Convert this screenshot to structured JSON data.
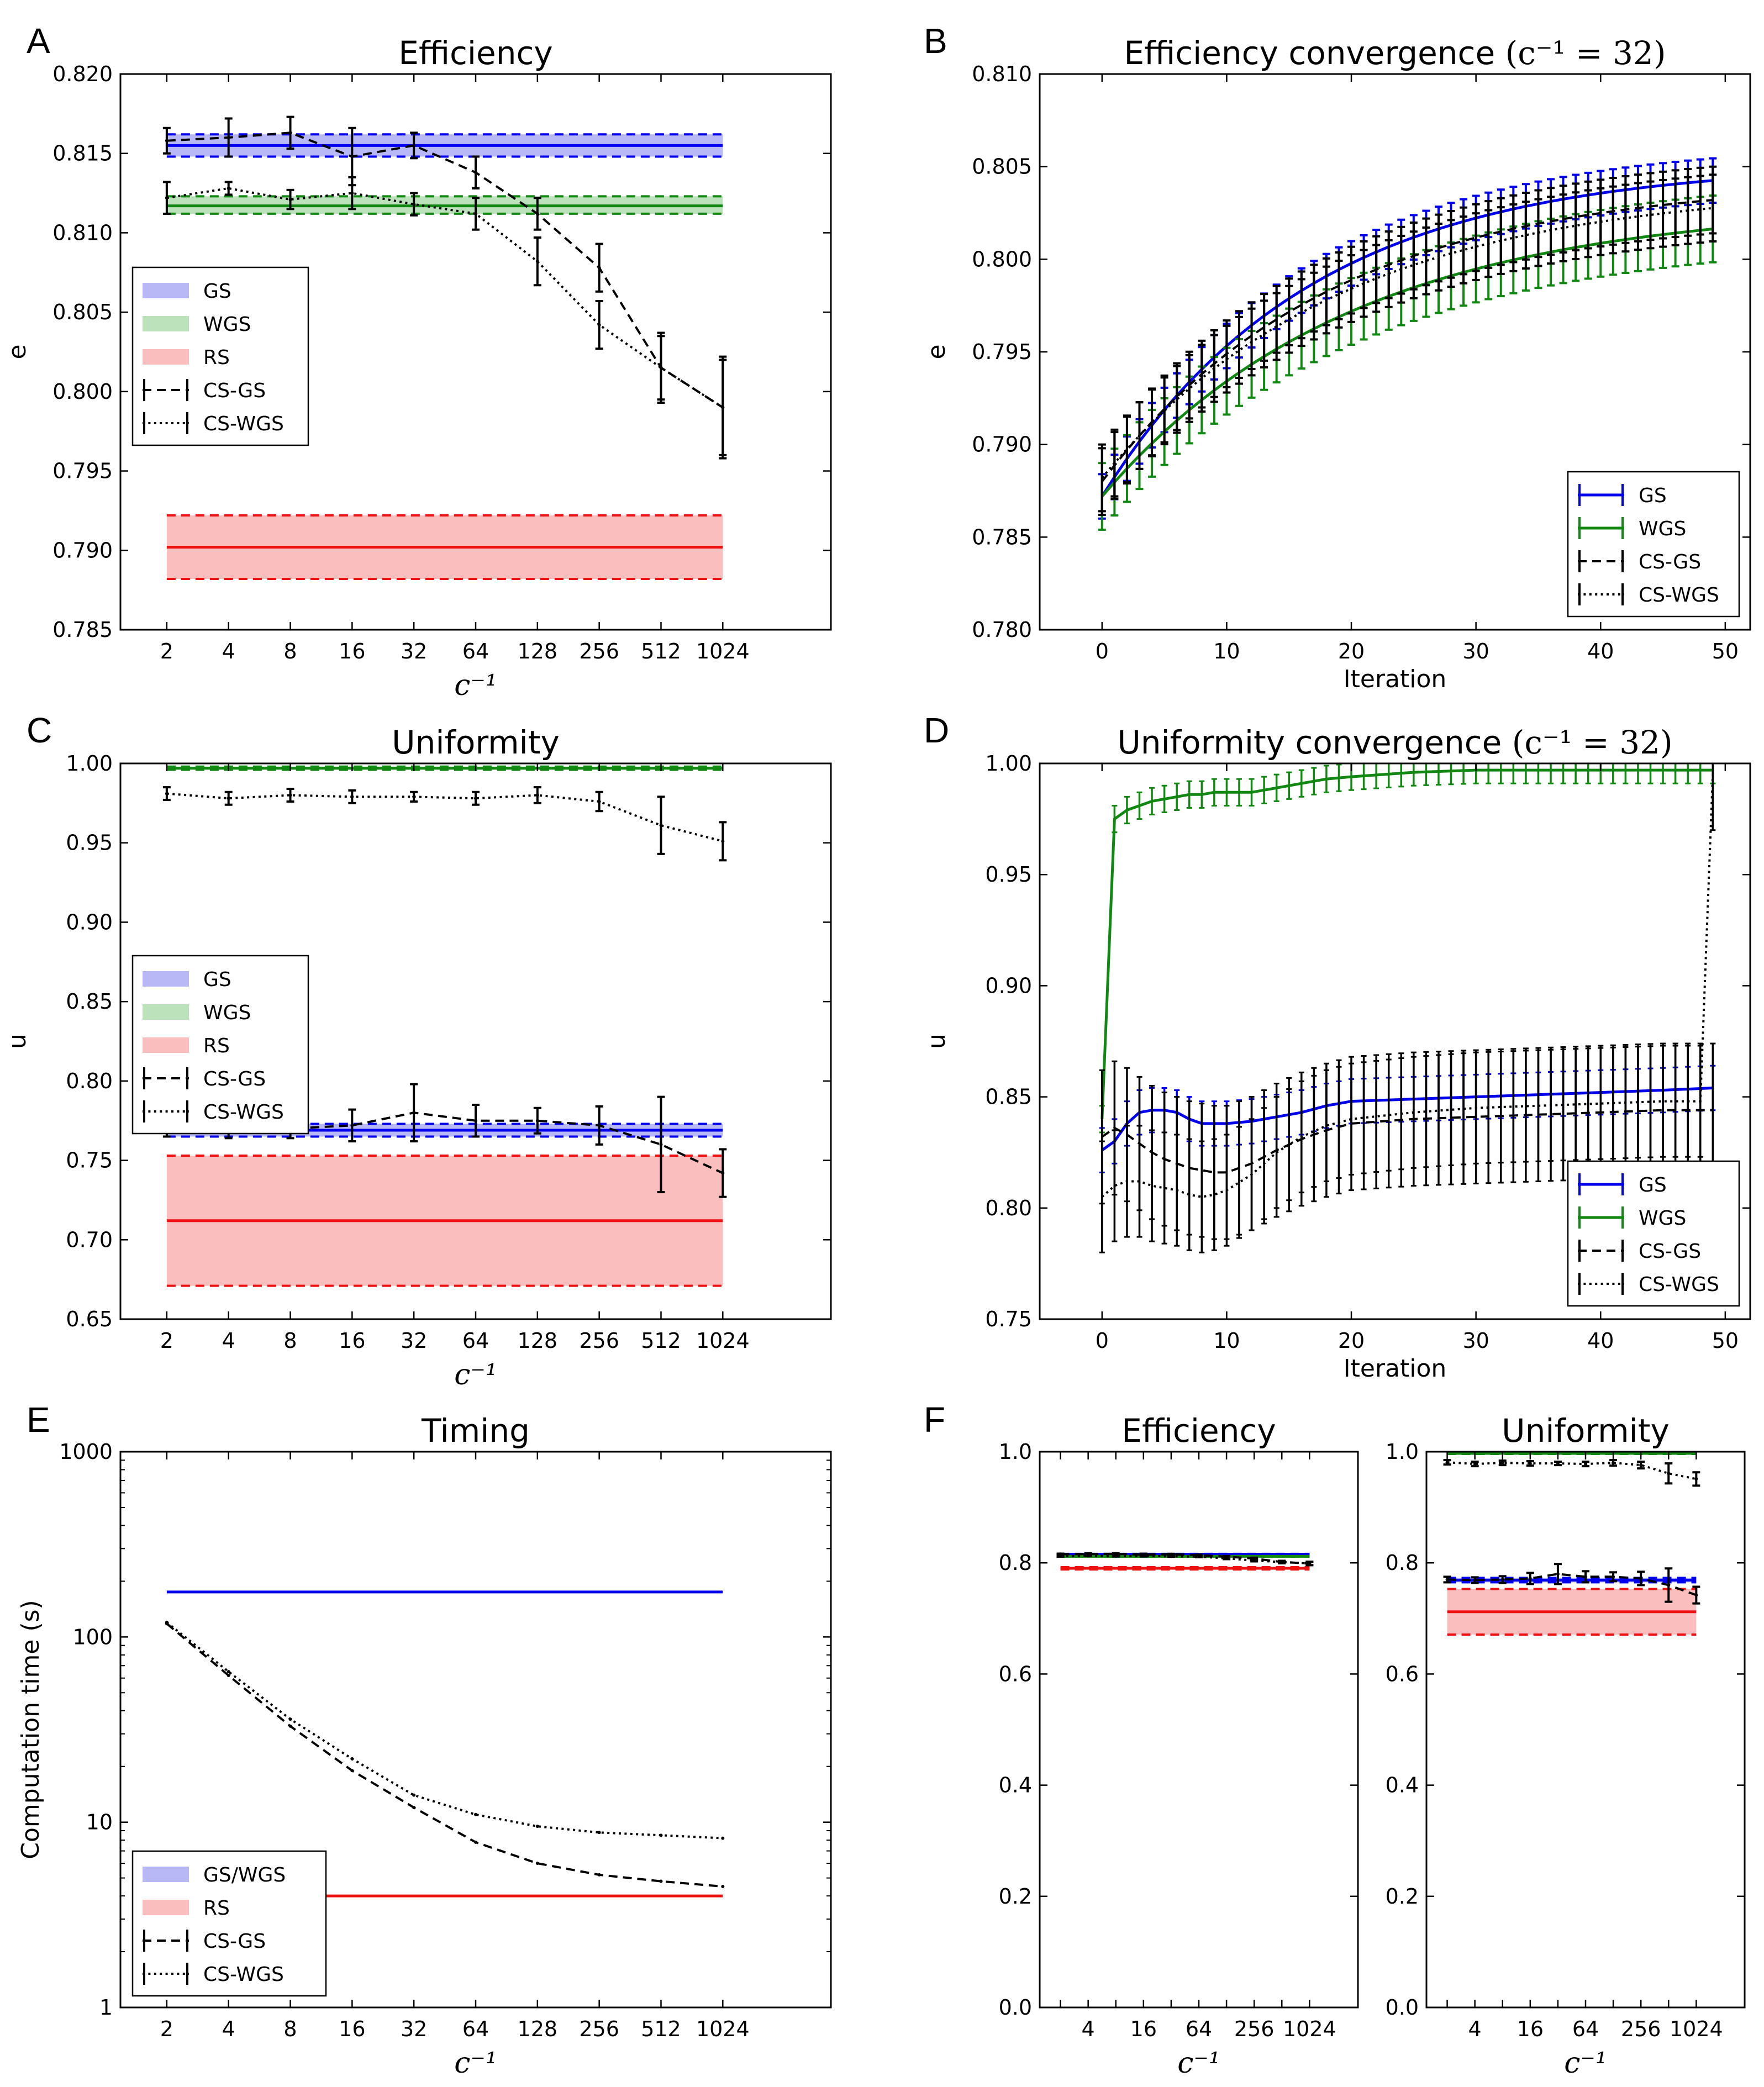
{
  "colors": {
    "GS": "#0000ee",
    "WGS": "#118811",
    "RS": "#ee1111",
    "CS": "#000000",
    "GS_fill": "#a0a0f4",
    "WGS_fill": "#a6d8a6",
    "RS_fill": "#f8a8a8"
  },
  "chart_data": [
    {
      "id": "A",
      "panel_label": "A",
      "type": "line",
      "title": "Efficiency",
      "xlabel": "c⁻¹",
      "ylabel": "e",
      "categories": [
        "2",
        "4",
        "8",
        "16",
        "32",
        "64",
        "128",
        "256",
        "512",
        "1024"
      ],
      "ylim": [
        0.785,
        0.82
      ],
      "yticks": [
        "0.785",
        "0.790",
        "0.795",
        "0.800",
        "0.805",
        "0.810",
        "0.815",
        "0.820"
      ],
      "bands": [
        {
          "name": "GS",
          "mean": 0.8155,
          "lo": 0.8148,
          "hi": 0.8162
        },
        {
          "name": "WGS",
          "mean": 0.8117,
          "lo": 0.8112,
          "hi": 0.8123
        },
        {
          "name": "RS",
          "mean": 0.7902,
          "lo": 0.7882,
          "hi": 0.7922
        }
      ],
      "series": [
        {
          "name": "CS-GS",
          "style": "dashed",
          "values": [
            0.8158,
            0.816,
            0.8163,
            0.8148,
            0.8155,
            0.8138,
            0.8112,
            0.8078,
            0.8015,
            0.799
          ],
          "err": [
            0.0008,
            0.0012,
            0.001,
            0.0018,
            0.0008,
            0.001,
            0.001,
            0.0015,
            0.0022,
            0.0032
          ]
        },
        {
          "name": "CS-WGS",
          "style": "dotted",
          "values": [
            0.8122,
            0.8128,
            0.8121,
            0.8125,
            0.8118,
            0.8112,
            0.8082,
            0.8042,
            0.8015,
            0.799
          ],
          "err": [
            0.001,
            0.0004,
            0.0006,
            0.001,
            0.0007,
            0.001,
            0.0015,
            0.0015,
            0.002,
            0.003
          ]
        }
      ],
      "legend": [
        "GS",
        "WGS",
        "RS",
        "CS-GS",
        "CS-WGS"
      ]
    },
    {
      "id": "B",
      "panel_label": "B",
      "type": "line",
      "title": "Efficiency convergence",
      "title_math": "(c⁻¹ = 32)",
      "xlabel": "Iteration",
      "ylabel": "e",
      "xlim": [
        -5,
        52
      ],
      "xticks": [
        0,
        10,
        20,
        30,
        40,
        50
      ],
      "ylim": [
        0.78,
        0.81
      ],
      "yticks": [
        "0.780",
        "0.785",
        "0.790",
        "0.795",
        "0.800",
        "0.805",
        "0.810"
      ],
      "series": [
        {
          "name": "GS",
          "start": 0.7872,
          "end": 0.8052,
          "k": 0.06,
          "err": 0.0012
        },
        {
          "name": "WGS",
          "start": 0.7872,
          "end": 0.803,
          "k": 0.05,
          "err": 0.0018
        },
        {
          "name": "CS-GS",
          "style": "dashed",
          "start": 0.788,
          "end": 0.8043,
          "k": 0.055,
          "err": 0.0018
        },
        {
          "name": "CS-WGS",
          "style": "dotted",
          "start": 0.7882,
          "end": 0.804,
          "k": 0.052,
          "err": 0.0018
        }
      ],
      "legend": [
        "GS",
        "WGS",
        "CS-GS",
        "CS-WGS"
      ]
    },
    {
      "id": "C",
      "panel_label": "C",
      "type": "line",
      "title": "Uniformity",
      "xlabel": "c⁻¹",
      "ylabel": "u",
      "categories": [
        "2",
        "4",
        "8",
        "16",
        "32",
        "64",
        "128",
        "256",
        "512",
        "1024"
      ],
      "ylim": [
        0.65,
        1.0
      ],
      "yticks": [
        "0.65",
        "0.70",
        "0.75",
        "0.80",
        "0.85",
        "0.90",
        "0.95",
        "1.00"
      ],
      "bands": [
        {
          "name": "GS",
          "mean": 0.769,
          "lo": 0.765,
          "hi": 0.773
        },
        {
          "name": "WGS",
          "mean": 0.997,
          "lo": 0.996,
          "hi": 0.998
        },
        {
          "name": "RS",
          "mean": 0.712,
          "lo": 0.671,
          "hi": 0.753
        }
      ],
      "series": [
        {
          "name": "CS-GS",
          "style": "dashed",
          "values": [
            0.77,
            0.769,
            0.77,
            0.772,
            0.78,
            0.775,
            0.775,
            0.772,
            0.76,
            0.742
          ],
          "err": [
            0.005,
            0.005,
            0.006,
            0.01,
            0.018,
            0.01,
            0.008,
            0.012,
            0.03,
            0.015
          ]
        },
        {
          "name": "CS-WGS",
          "style": "dotted",
          "values": [
            0.981,
            0.978,
            0.98,
            0.979,
            0.979,
            0.978,
            0.98,
            0.976,
            0.961,
            0.951
          ],
          "err": [
            0.004,
            0.004,
            0.004,
            0.004,
            0.003,
            0.004,
            0.005,
            0.006,
            0.018,
            0.012
          ]
        }
      ],
      "legend": [
        "GS",
        "WGS",
        "RS",
        "CS-GS",
        "CS-WGS"
      ]
    },
    {
      "id": "D",
      "panel_label": "D",
      "type": "line",
      "title": "Uniformity convergence",
      "title_math": "(c⁻¹ = 32)",
      "xlabel": "Iteration",
      "ylabel": "u",
      "xlim": [
        -5,
        52
      ],
      "xticks": [
        0,
        10,
        20,
        30,
        40,
        50
      ],
      "ylim": [
        0.75,
        1.0
      ],
      "yticks": [
        "0.75",
        "0.80",
        "0.85",
        "0.90",
        "0.95",
        "1.00"
      ],
      "series": [
        {
          "name": "GS",
          "x": [
            0,
            1,
            2,
            3,
            4,
            5,
            6,
            7,
            8,
            9,
            10,
            12,
            14,
            16,
            18,
            20,
            25,
            30,
            35,
            40,
            45,
            49
          ],
          "values": [
            0.826,
            0.83,
            0.838,
            0.843,
            0.844,
            0.844,
            0.843,
            0.84,
            0.838,
            0.838,
            0.838,
            0.839,
            0.841,
            0.843,
            0.846,
            0.848,
            0.849,
            0.85,
            0.851,
            0.852,
            0.853,
            0.854
          ],
          "err": 0.01
        },
        {
          "name": "WGS",
          "x": [
            0,
            1,
            2,
            3,
            4,
            5,
            6,
            7,
            8,
            9,
            10,
            12,
            14,
            16,
            18,
            20,
            25,
            30,
            35,
            40,
            45,
            49
          ],
          "values": [
            0.84,
            0.975,
            0.979,
            0.981,
            0.983,
            0.984,
            0.985,
            0.986,
            0.986,
            0.987,
            0.987,
            0.987,
            0.989,
            0.991,
            0.993,
            0.994,
            0.996,
            0.997,
            0.997,
            0.997,
            0.997,
            0.997
          ],
          "err": 0.006
        },
        {
          "name": "CS-GS",
          "style": "dashed",
          "x": [
            0,
            1,
            2,
            3,
            4,
            5,
            6,
            7,
            8,
            9,
            10,
            12,
            14,
            16,
            18,
            20,
            25,
            30,
            35,
            40,
            45,
            49
          ],
          "values": [
            0.832,
            0.836,
            0.833,
            0.829,
            0.825,
            0.822,
            0.82,
            0.818,
            0.817,
            0.816,
            0.816,
            0.82,
            0.826,
            0.831,
            0.835,
            0.838,
            0.84,
            0.841,
            0.842,
            0.843,
            0.844,
            0.844
          ],
          "err": 0.03
        },
        {
          "name": "CS-WGS",
          "style": "dotted",
          "x": [
            0,
            1,
            2,
            3,
            4,
            5,
            6,
            7,
            8,
            9,
            10,
            12,
            14,
            16,
            18,
            20,
            25,
            30,
            35,
            40,
            45,
            48,
            49
          ],
          "values": [
            0.805,
            0.81,
            0.812,
            0.812,
            0.81,
            0.809,
            0.808,
            0.806,
            0.805,
            0.806,
            0.808,
            0.815,
            0.825,
            0.832,
            0.837,
            0.84,
            0.843,
            0.845,
            0.846,
            0.847,
            0.848,
            0.848,
            0.995
          ],
          "err": 0.025
        }
      ],
      "legend": [
        "GS",
        "WGS",
        "CS-GS",
        "CS-WGS"
      ]
    },
    {
      "id": "E",
      "panel_label": "E",
      "type": "line",
      "title": "Timing",
      "xlabel": "c⁻¹",
      "ylabel": "Computation time (s)",
      "yscale": "log",
      "categories": [
        "2",
        "4",
        "8",
        "16",
        "32",
        "64",
        "128",
        "256",
        "512",
        "1024"
      ],
      "ylim": [
        1,
        1000
      ],
      "yticks": [
        "1",
        "10",
        "100",
        "1000"
      ],
      "bands": [
        {
          "name": "GS/WGS",
          "mean": 175
        },
        {
          "name": "RS",
          "mean": 4.0
        }
      ],
      "series": [
        {
          "name": "CS-GS",
          "style": "dashed",
          "values": [
            118,
            62,
            33,
            19,
            12,
            7.8,
            6.0,
            5.2,
            4.8,
            4.5
          ]
        },
        {
          "name": "CS-WGS",
          "style": "dotted",
          "values": [
            120,
            65,
            36,
            22,
            14,
            11,
            9.5,
            8.8,
            8.5,
            8.2
          ]
        }
      ],
      "legend": [
        "GS/WGS",
        "RS",
        "CS-GS",
        "CS-WGS"
      ]
    },
    {
      "id": "F1",
      "panel_label": "F",
      "type": "line",
      "title": "Efficiency",
      "xlabel": "c⁻¹",
      "ylabel": "",
      "categories": [
        "2",
        "4",
        "8",
        "16",
        "32",
        "64",
        "128",
        "256",
        "512",
        "1024"
      ],
      "xtick_labels": [
        "",
        "4",
        "",
        "16",
        "",
        "64",
        "",
        "256",
        "",
        "1024"
      ],
      "ylim": [
        0.0,
        1.0
      ],
      "yticks": [
        "0.0",
        "0.2",
        "0.4",
        "0.6",
        "0.8",
        "1.0"
      ],
      "bands": [
        {
          "name": "GS",
          "mean": 0.8155,
          "lo": 0.8148,
          "hi": 0.8162
        },
        {
          "name": "WGS",
          "mean": 0.8117,
          "lo": 0.8112,
          "hi": 0.8123
        },
        {
          "name": "RS",
          "mean": 0.7902,
          "lo": 0.7882,
          "hi": 0.7922
        }
      ],
      "series": [
        {
          "name": "CS-GS",
          "style": "dashed",
          "values": [
            0.8158,
            0.816,
            0.8163,
            0.8148,
            0.8155,
            0.8138,
            0.8112,
            0.8078,
            0.8015,
            0.799
          ],
          "err": [
            0.0008,
            0.0012,
            0.001,
            0.0018,
            0.0008,
            0.001,
            0.001,
            0.0015,
            0.0022,
            0.0032
          ]
        },
        {
          "name": "CS-WGS",
          "style": "dotted",
          "values": [
            0.8122,
            0.8128,
            0.8121,
            0.8125,
            0.8118,
            0.8112,
            0.8082,
            0.8042,
            0.8015,
            0.799
          ],
          "err": [
            0.001,
            0.0004,
            0.0006,
            0.001,
            0.0007,
            0.001,
            0.0015,
            0.0015,
            0.002,
            0.003
          ]
        }
      ]
    },
    {
      "id": "F2",
      "panel_label": "",
      "type": "line",
      "title": "Uniformity",
      "xlabel": "c⁻¹",
      "ylabel": "",
      "categories": [
        "2",
        "4",
        "8",
        "16",
        "32",
        "64",
        "128",
        "256",
        "512",
        "1024"
      ],
      "xtick_labels": [
        "",
        "4",
        "",
        "16",
        "",
        "64",
        "",
        "256",
        "",
        "1024"
      ],
      "ylim": [
        0.0,
        1.0
      ],
      "yticks": [
        "0.0",
        "0.2",
        "0.4",
        "0.6",
        "0.8",
        "1.0"
      ],
      "bands": [
        {
          "name": "GS",
          "mean": 0.769,
          "lo": 0.765,
          "hi": 0.773
        },
        {
          "name": "WGS",
          "mean": 0.997,
          "lo": 0.996,
          "hi": 0.998
        },
        {
          "name": "RS",
          "mean": 0.712,
          "lo": 0.671,
          "hi": 0.753
        }
      ],
      "series": [
        {
          "name": "CS-GS",
          "style": "dashed",
          "values": [
            0.77,
            0.769,
            0.77,
            0.772,
            0.78,
            0.775,
            0.775,
            0.772,
            0.76,
            0.742
          ],
          "err": [
            0.005,
            0.005,
            0.006,
            0.01,
            0.018,
            0.01,
            0.008,
            0.012,
            0.03,
            0.015
          ]
        },
        {
          "name": "CS-WGS",
          "style": "dotted",
          "values": [
            0.981,
            0.978,
            0.98,
            0.979,
            0.979,
            0.978,
            0.98,
            0.976,
            0.961,
            0.951
          ],
          "err": [
            0.004,
            0.004,
            0.004,
            0.004,
            0.003,
            0.004,
            0.005,
            0.006,
            0.018,
            0.012
          ]
        }
      ]
    }
  ]
}
